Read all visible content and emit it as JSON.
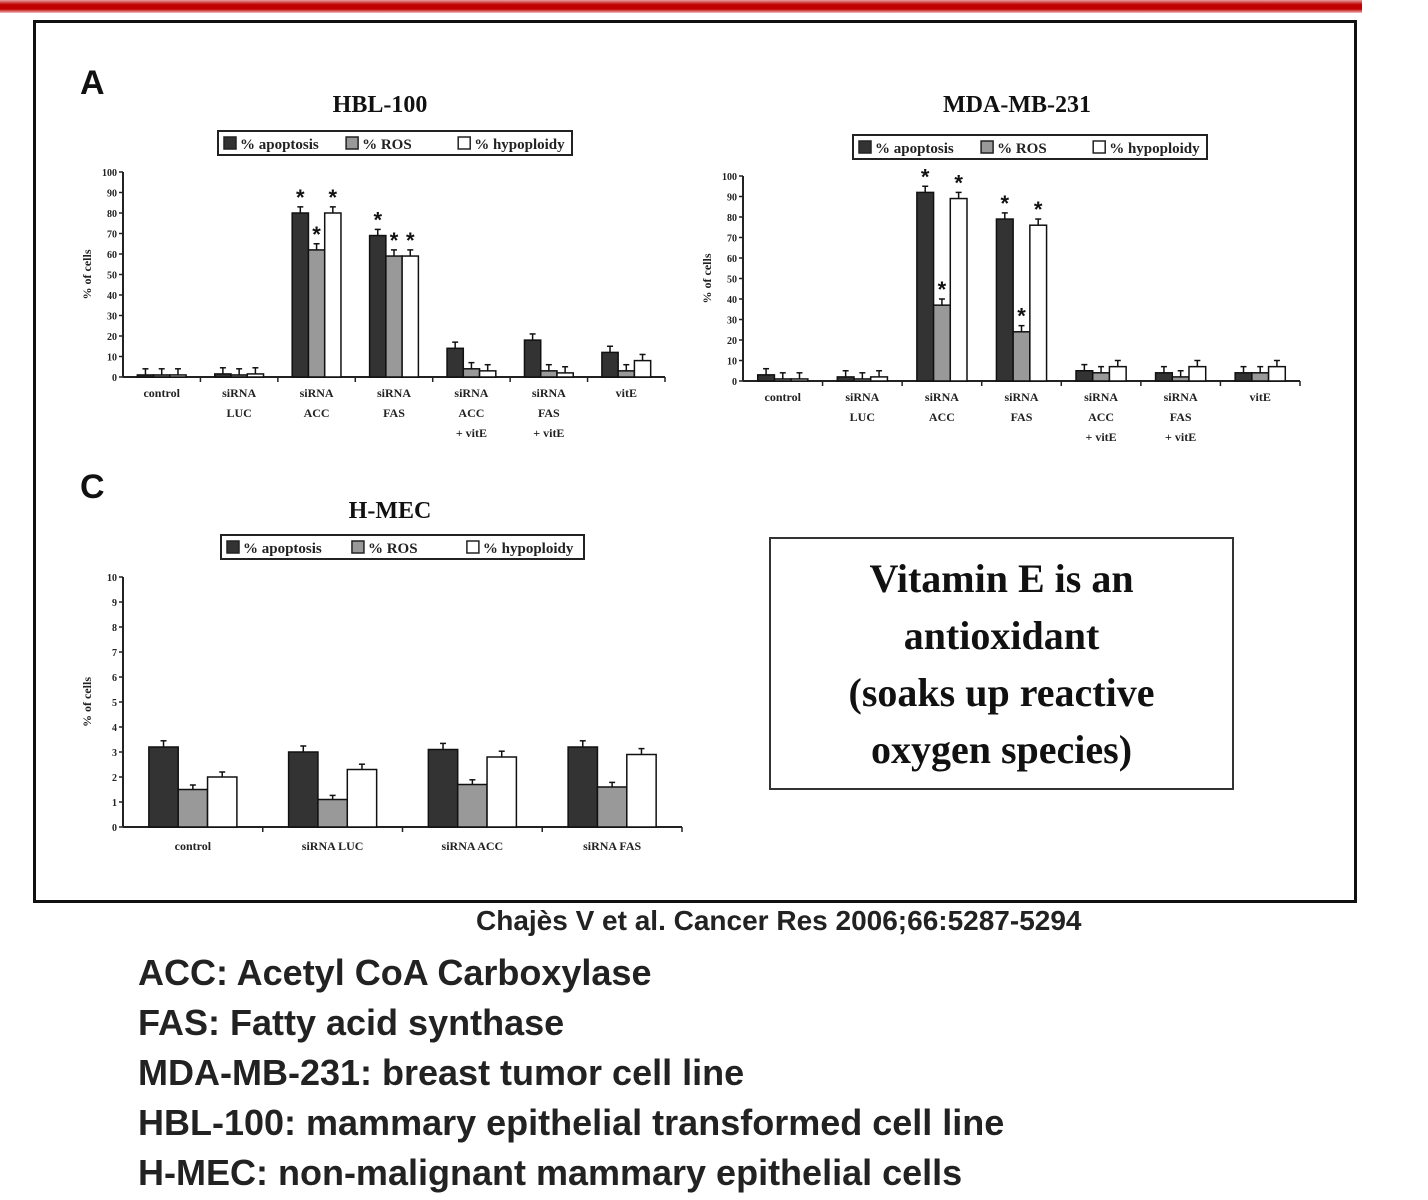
{
  "panel_labels": {
    "a": "A",
    "c": "C"
  },
  "legend": [
    "% apoptosis",
    "% ROS",
    "% hypoploidy"
  ],
  "colors": {
    "apoptosis": "#333333",
    "ros": "#999999",
    "hypoploidy": "#ffffff",
    "accent": "#c00000"
  },
  "chart_data": [
    {
      "type": "bar",
      "title": "HBL-100",
      "ylabel": "% of cells",
      "ylim": [
        0,
        100
      ],
      "yticks": [
        0,
        10,
        20,
        30,
        40,
        50,
        60,
        70,
        80,
        90,
        100
      ],
      "categories": [
        [
          "control"
        ],
        [
          "siRNA",
          "LUC"
        ],
        [
          "siRNA",
          "ACC"
        ],
        [
          "siRNA",
          "FAS"
        ],
        [
          "siRNA",
          "ACC",
          "+ vitE"
        ],
        [
          "siRNA",
          "FAS",
          "+ vitE"
        ],
        [
          "vitE"
        ]
      ],
      "series": [
        {
          "name": "% apoptosis",
          "values": [
            1,
            1.5,
            80,
            69,
            14,
            18,
            12
          ]
        },
        {
          "name": "% ROS",
          "values": [
            1,
            1,
            62,
            59,
            4,
            3,
            3
          ]
        },
        {
          "name": "% hypoploidy",
          "values": [
            1,
            1.5,
            80,
            59,
            3,
            2,
            8
          ]
        }
      ],
      "significant": [
        [
          2,
          0
        ],
        [
          2,
          1
        ],
        [
          2,
          2
        ],
        [
          3,
          0
        ],
        [
          3,
          1
        ],
        [
          3,
          2
        ]
      ],
      "legend_position": "top-center"
    },
    {
      "type": "bar",
      "title": "MDA-MB-231",
      "ylabel": "% of cells",
      "ylim": [
        0,
        100
      ],
      "yticks": [
        0,
        10,
        20,
        30,
        40,
        50,
        60,
        70,
        80,
        90,
        100
      ],
      "categories": [
        [
          "control"
        ],
        [
          "siRNA",
          "LUC"
        ],
        [
          "siRNA",
          "ACC"
        ],
        [
          "siRNA",
          "FAS"
        ],
        [
          "siRNA",
          "ACC",
          "+ vitE"
        ],
        [
          "siRNA",
          "FAS",
          "+ vitE"
        ],
        [
          "vitE"
        ]
      ],
      "series": [
        {
          "name": "% apoptosis",
          "values": [
            3,
            2,
            92,
            79,
            5,
            4,
            4
          ]
        },
        {
          "name": "% ROS",
          "values": [
            1,
            1,
            37,
            24,
            4,
            2,
            4
          ]
        },
        {
          "name": "% hypoploidy",
          "values": [
            1,
            2,
            89,
            76,
            7,
            7,
            7
          ]
        }
      ],
      "significant": [
        [
          2,
          0
        ],
        [
          2,
          1
        ],
        [
          2,
          2
        ],
        [
          3,
          0
        ],
        [
          3,
          1
        ],
        [
          3,
          2
        ]
      ],
      "legend_position": "top-center"
    },
    {
      "type": "bar",
      "title": "H-MEC",
      "ylabel": "% of cells",
      "ylim": [
        0,
        10
      ],
      "yticks": [
        0,
        1,
        2,
        3,
        4,
        5,
        6,
        7,
        8,
        9,
        10
      ],
      "categories": [
        [
          "control"
        ],
        [
          "siRNA LUC"
        ],
        [
          "siRNA ACC"
        ],
        [
          "siRNA FAS"
        ]
      ],
      "series": [
        {
          "name": "% apoptosis",
          "values": [
            3.2,
            3.0,
            3.1,
            3.2
          ]
        },
        {
          "name": "% ROS",
          "values": [
            1.5,
            1.1,
            1.7,
            1.6
          ]
        },
        {
          "name": "% hypoploidy",
          "values": [
            2.0,
            2.3,
            2.8,
            2.9
          ]
        }
      ],
      "significant": [],
      "legend_position": "top-center"
    }
  ],
  "note_box": [
    "Vitamin E is an",
    "antioxidant",
    "(soaks up reactive",
    "oxygen species)"
  ],
  "citation": "Chajès V et al. Cancer Res 2006;66:5287-5294",
  "definitions": [
    "ACC: Acetyl CoA Carboxylase",
    "FAS: Fatty acid synthase",
    "MDA-MB-231: breast tumor cell line",
    "HBL-100: mammary epithelial transformed cell line",
    "H-MEC: non-malignant mammary epithelial cells"
  ]
}
